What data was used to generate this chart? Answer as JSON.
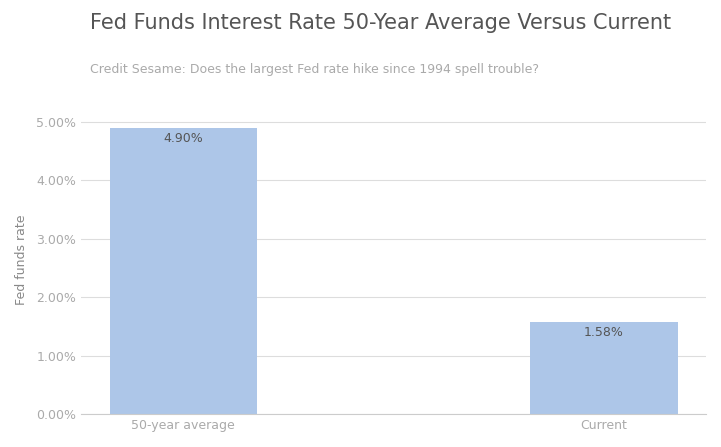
{
  "title": "Fed Funds Interest Rate 50-Year Average Versus Current",
  "subtitle": "Credit Sesame: Does the largest Fed rate hike since 1994 spell trouble?",
  "categories": [
    "50-year average",
    "Current"
  ],
  "values": [
    4.9,
    1.58
  ],
  "bar_color": "#adc6e8",
  "bar_labels": [
    "4.90%",
    "1.58%"
  ],
  "ylabel": "Fed funds rate",
  "ylim": [
    0,
    5.3
  ],
  "yticks": [
    0.0,
    1.0,
    2.0,
    3.0,
    4.0,
    5.0
  ],
  "ytick_labels": [
    "0.00%",
    "1.00%",
    "2.00%",
    "3.00%",
    "4.00%",
    "5.00%"
  ],
  "title_fontsize": 15,
  "subtitle_fontsize": 9,
  "ylabel_fontsize": 9,
  "tick_fontsize": 9,
  "bar_label_fontsize": 9,
  "title_color": "#555555",
  "subtitle_color": "#aaaaaa",
  "tick_color": "#aaaaaa",
  "ylabel_color": "#888888",
  "bar_label_color": "#555555",
  "background_color": "#ffffff",
  "grid_color": "#dddddd",
  "bar_width": 0.35
}
